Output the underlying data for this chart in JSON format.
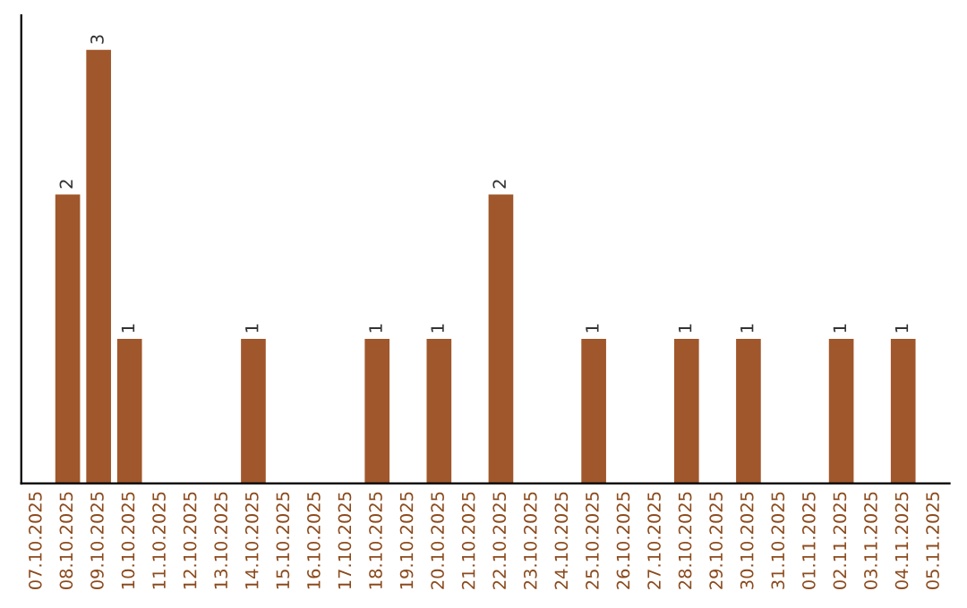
{
  "chart_data": {
    "type": "bar",
    "categories": [
      "07.10.2025",
      "08.10.2025",
      "09.10.2025",
      "10.10.2025",
      "11.10.2025",
      "12.10.2025",
      "13.10.2025",
      "14.10.2025",
      "15.10.2025",
      "16.10.2025",
      "17.10.2025",
      "18.10.2025",
      "19.10.2025",
      "20.10.2025",
      "21.10.2025",
      "22.10.2025",
      "23.10.2025",
      "24.10.2025",
      "25.10.2025",
      "26.10.2025",
      "27.10.2025",
      "28.10.2025",
      "29.10.2025",
      "30.10.2025",
      "31.10.2025",
      "01.11.2025",
      "02.11.2025",
      "03.11.2025",
      "04.11.2025",
      "05.11.2025"
    ],
    "values": [
      0,
      2,
      3,
      1,
      0,
      0,
      0,
      1,
      0,
      0,
      0,
      1,
      0,
      1,
      0,
      2,
      0,
      0,
      1,
      0,
      0,
      1,
      0,
      1,
      0,
      0,
      1,
      0,
      1,
      0
    ],
    "value_labels": [
      null,
      "2",
      "3",
      "1",
      null,
      null,
      null,
      "1",
      null,
      null,
      null,
      "1",
      null,
      "1",
      null,
      "2",
      null,
      null,
      "1",
      null,
      null,
      "1",
      null,
      "1",
      null,
      null,
      "1",
      null,
      "1",
      null
    ],
    "color": "#a0572b",
    "tick_labels": "x",
    "grid": false
  }
}
